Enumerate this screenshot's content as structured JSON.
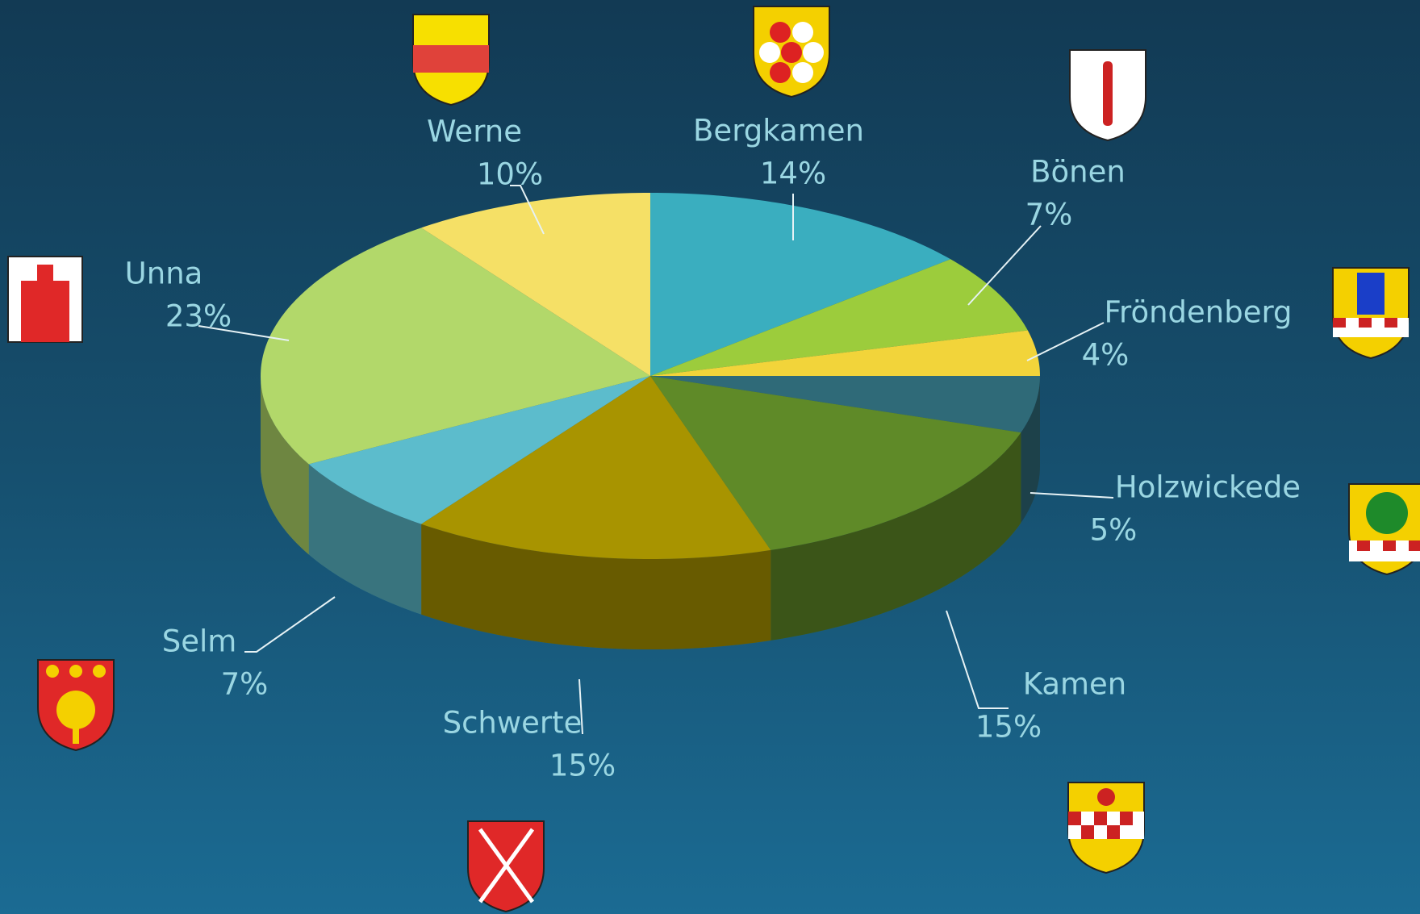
{
  "chart_data": {
    "type": "pie",
    "categories": [
      "Bergkamen",
      "Bönen",
      "Fröndenberg",
      "Holzwickede",
      "Kamen",
      "Schwerte",
      "Selm",
      "Unna",
      "Werne"
    ],
    "values": [
      14,
      7,
      4,
      5,
      15,
      15,
      7,
      23,
      10
    ],
    "value_labels": [
      "14%",
      "7%",
      "4%",
      "5%",
      "15%",
      "15%",
      "7%",
      "23%",
      "10%"
    ],
    "colors": [
      "#3aaebf",
      "#9ccc3c",
      "#f2d43a",
      "#2f6a78",
      "#5f8a28",
      "#a89400",
      "#5cbccc",
      "#b2d86a",
      "#f5e066"
    ]
  }
}
